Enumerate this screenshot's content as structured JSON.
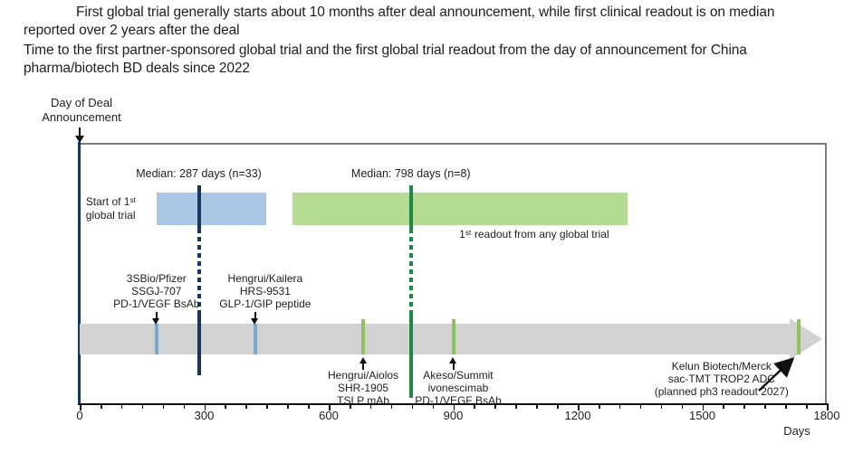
{
  "header": {
    "title": "First global trial generally starts about 10 months after deal announcement, while first clinical readout is on median reported over 2 years after the deal",
    "subtitle": "Time to the first partner-sponsored global trial and the first global trial readout from the day of announcement for China pharma/biotech BD deals since 2022"
  },
  "chart_data": {
    "type": "timeline",
    "origin_label": "Day of Deal\nAnnouncement",
    "xlabel": "Days",
    "xlim": [
      0,
      1800
    ],
    "x_ticks": [
      0,
      300,
      600,
      900,
      1200,
      1500,
      1800
    ],
    "x_minor_tick_step": 50,
    "band_color": "#d2d2d2",
    "frame_color": "#7d7d7d",
    "origin_line_color": "#17365d",
    "series": {
      "trial_start": {
        "color": "#7ea9cf"
      },
      "readout": {
        "color": "#8fc35f"
      }
    },
    "ranges": [
      {
        "label": "Start of 1ˢᵗ\nglobal trial",
        "label_position": "left",
        "start_day": 185,
        "end_day": 450,
        "color": "#a9c7e4",
        "median_day": 287,
        "median_n": 33,
        "median_label": "Median: 287 days (n=33)",
        "median_color": "#17365d"
      },
      {
        "label": "1ˢᵗ readout from any global trial",
        "label_position": "below",
        "label_center_day": 1095,
        "start_day": 513,
        "end_day": 1320,
        "color": "#b5da92",
        "median_day": 798,
        "median_n": 8,
        "median_label": "Median: 798 days (n=8)",
        "median_color": "#1e8a47"
      }
    ],
    "events": [
      {
        "company": "3SBio/Pfizer",
        "asset": "SSGJ-707",
        "modality": "PD-1/VEGF BsAb",
        "day": 185,
        "series": "trial_start",
        "label_side": "above"
      },
      {
        "company": "Hengrui/Kailera",
        "asset": "HRS-9531",
        "modality": "GLP-1/GIP peptide",
        "day": 423,
        "series": "trial_start",
        "label_side": "above"
      },
      {
        "company": "Hengrui/Aiolos",
        "asset": "SHR-1905",
        "modality": "TSLP mAb",
        "day": 683,
        "series": "readout",
        "label_side": "below"
      },
      {
        "company": "Akeso/Summit",
        "asset": "ivonescimab",
        "modality": "PD-1/VEGF BsAb",
        "day": 901,
        "series": "readout",
        "label_side": "below"
      },
      {
        "company": "Kelun Biotech/Merck",
        "asset": "sac-TMT TROP2 ADC",
        "modality": "(planned ph3 readout 2027)",
        "day": 1732,
        "series": "readout",
        "label_side": "below_left"
      }
    ]
  }
}
